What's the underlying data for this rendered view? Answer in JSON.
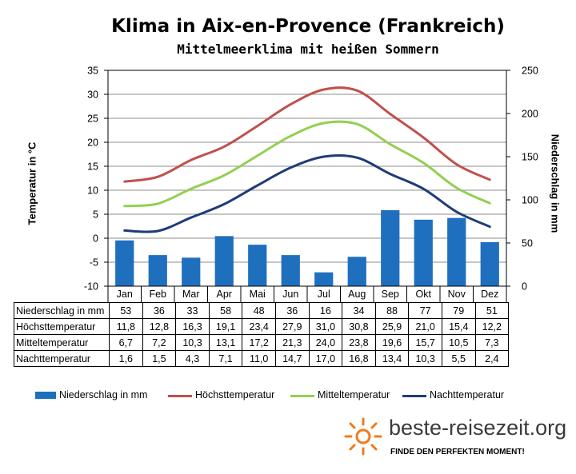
{
  "title": "Klima in Aix-en-Provence (Frankreich)",
  "subtitle": "Mittelmeerklima mit heißen Sommern",
  "chart_data": {
    "type": "bar",
    "categories": [
      "Jan",
      "Feb",
      "Mar",
      "Apr",
      "Mai",
      "Jun",
      "Jul",
      "Aug",
      "Sep",
      "Okt",
      "Nov",
      "Dez"
    ],
    "ylabel": "Temperatur in °C",
    "ylabel_right": "Niederschlag in mm",
    "ylim": [
      -10,
      35
    ],
    "ylim_right": [
      0,
      250
    ],
    "yticks": [
      "35",
      "30",
      "25",
      "20",
      "15",
      "10",
      "5",
      "0",
      "-5",
      "-10"
    ],
    "yticks_right": [
      "250",
      "200",
      "150",
      "100",
      "50",
      "0"
    ],
    "grid": true,
    "legend_position": "bottom",
    "series": [
      {
        "name": "Niederschlag in mm",
        "type": "bar",
        "axis": "right",
        "color": "#1f6fbf",
        "values": [
          53,
          36,
          33,
          58,
          48,
          36,
          16,
          34,
          88,
          77,
          79,
          51
        ],
        "labels": [
          "53",
          "36",
          "33",
          "58",
          "48",
          "36",
          "16",
          "34",
          "88",
          "77",
          "79",
          "51"
        ]
      },
      {
        "name": "Höchsttemperatur",
        "type": "line",
        "axis": "left",
        "color": "#c0504d",
        "values": [
          11.8,
          12.8,
          16.3,
          19.1,
          23.4,
          27.9,
          31.0,
          30.8,
          25.9,
          21.0,
          15.4,
          12.2
        ],
        "labels": [
          "11,8",
          "12,8",
          "16,3",
          "19,1",
          "23,4",
          "27,9",
          "31,0",
          "30,8",
          "25,9",
          "21,0",
          "15,4",
          "12,2"
        ]
      },
      {
        "name": "Mitteltemperatur",
        "type": "line",
        "axis": "left",
        "color": "#92d050",
        "values": [
          6.7,
          7.2,
          10.3,
          13.1,
          17.2,
          21.3,
          24.0,
          23.8,
          19.6,
          15.7,
          10.5,
          7.3
        ],
        "labels": [
          "6,7",
          "7,2",
          "10,3",
          "13,1",
          "17,2",
          "21,3",
          "24,0",
          "23,8",
          "19,6",
          "15,7",
          "10,5",
          "7,3"
        ]
      },
      {
        "name": "Nachttemperatur",
        "type": "line",
        "axis": "left",
        "color": "#1f3c78",
        "values": [
          1.6,
          1.5,
          4.3,
          7.1,
          11.0,
          14.7,
          17.0,
          16.8,
          13.4,
          10.3,
          5.5,
          2.4
        ],
        "labels": [
          "1,6",
          "1,5",
          "4,3",
          "7,1",
          "11,0",
          "14,7",
          "17,0",
          "16,8",
          "13,4",
          "10,3",
          "5,5",
          "2,4"
        ]
      }
    ]
  },
  "logo": {
    "brand": "beste-reisezeit.org",
    "slogan": "FINDE DEN PERFEKTEN MOMENT!"
  }
}
